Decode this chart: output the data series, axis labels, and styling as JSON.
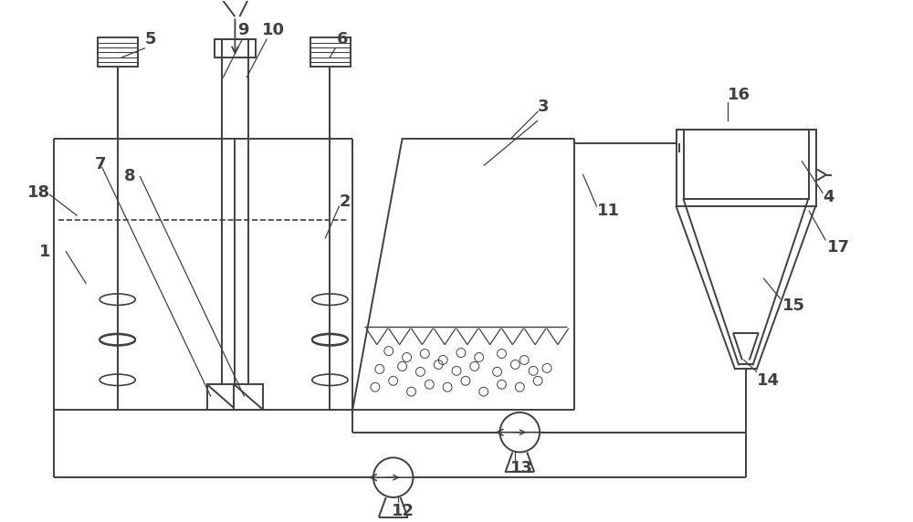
{
  "bg_color": "#ffffff",
  "lc": "#404040",
  "lw": 1.4,
  "figsize": [
    10.0,
    5.72
  ],
  "dpi": 100
}
